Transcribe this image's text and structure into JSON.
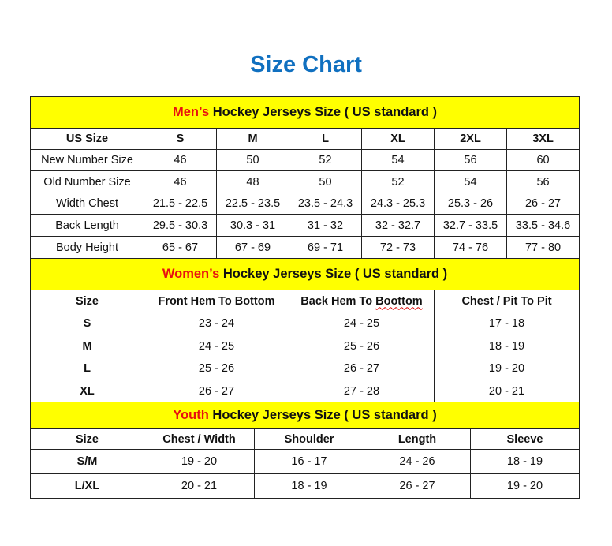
{
  "title": "Size Chart",
  "colors": {
    "title": "#1070C0",
    "header_bg": "#FFFF00",
    "highlight": "#E81010"
  },
  "mens": {
    "header_highlight": "Men’s",
    "header_rest": " Hockey Jerseys Size ( US standard )",
    "columns": [
      "US Size",
      "S",
      "M",
      "L",
      "XL",
      "2XL",
      "3XL"
    ],
    "rows": [
      [
        "New Number Size",
        "46",
        "50",
        "52",
        "54",
        "56",
        "60"
      ],
      [
        "Old Number Size",
        "46",
        "48",
        "50",
        "52",
        "54",
        "56"
      ],
      [
        "Width Chest",
        "21.5 - 22.5",
        "22.5 - 23.5",
        "23.5 - 24.3",
        "24.3 - 25.3",
        "25.3 - 26",
        "26 - 27"
      ],
      [
        "Back Length",
        "29.5 - 30.3",
        "30.3 - 31",
        "31 - 32",
        "32 - 32.7",
        "32.7 - 33.5",
        "33.5 - 34.6"
      ],
      [
        "Body Height",
        "65 - 67",
        "67 - 69",
        "69 - 71",
        "72 - 73",
        "74 - 76",
        "77 - 80"
      ]
    ]
  },
  "womens": {
    "header_highlight": "Women’s",
    "header_rest": " Hockey Jerseys Size ( US standard )",
    "columns": [
      "Size",
      "Front Hem To Bottom",
      "Back Hem To Boottom",
      "Chest / Pit To Pit"
    ],
    "rows": [
      [
        "S",
        "23 - 24",
        "24 - 25",
        "17 - 18"
      ],
      [
        "M",
        "24 - 25",
        "25 - 26",
        "18 - 19"
      ],
      [
        "L",
        "25 - 26",
        "26 - 27",
        "19 - 20"
      ],
      [
        "XL",
        "26 - 27",
        "27 - 28",
        "20 - 21"
      ]
    ]
  },
  "youth": {
    "header_highlight": "Youth",
    "header_rest": " Hockey Jerseys Size ( US standard )",
    "columns": [
      "Size",
      "Chest / Width",
      "Shoulder",
      "Length",
      "Sleeve"
    ],
    "rows": [
      [
        "S/M",
        "19 - 20",
        "16 - 17",
        "24 - 26",
        "18 - 19"
      ],
      [
        "L/XL",
        "20 - 21",
        "18 - 19",
        "26 - 27",
        "19 - 20"
      ]
    ]
  }
}
